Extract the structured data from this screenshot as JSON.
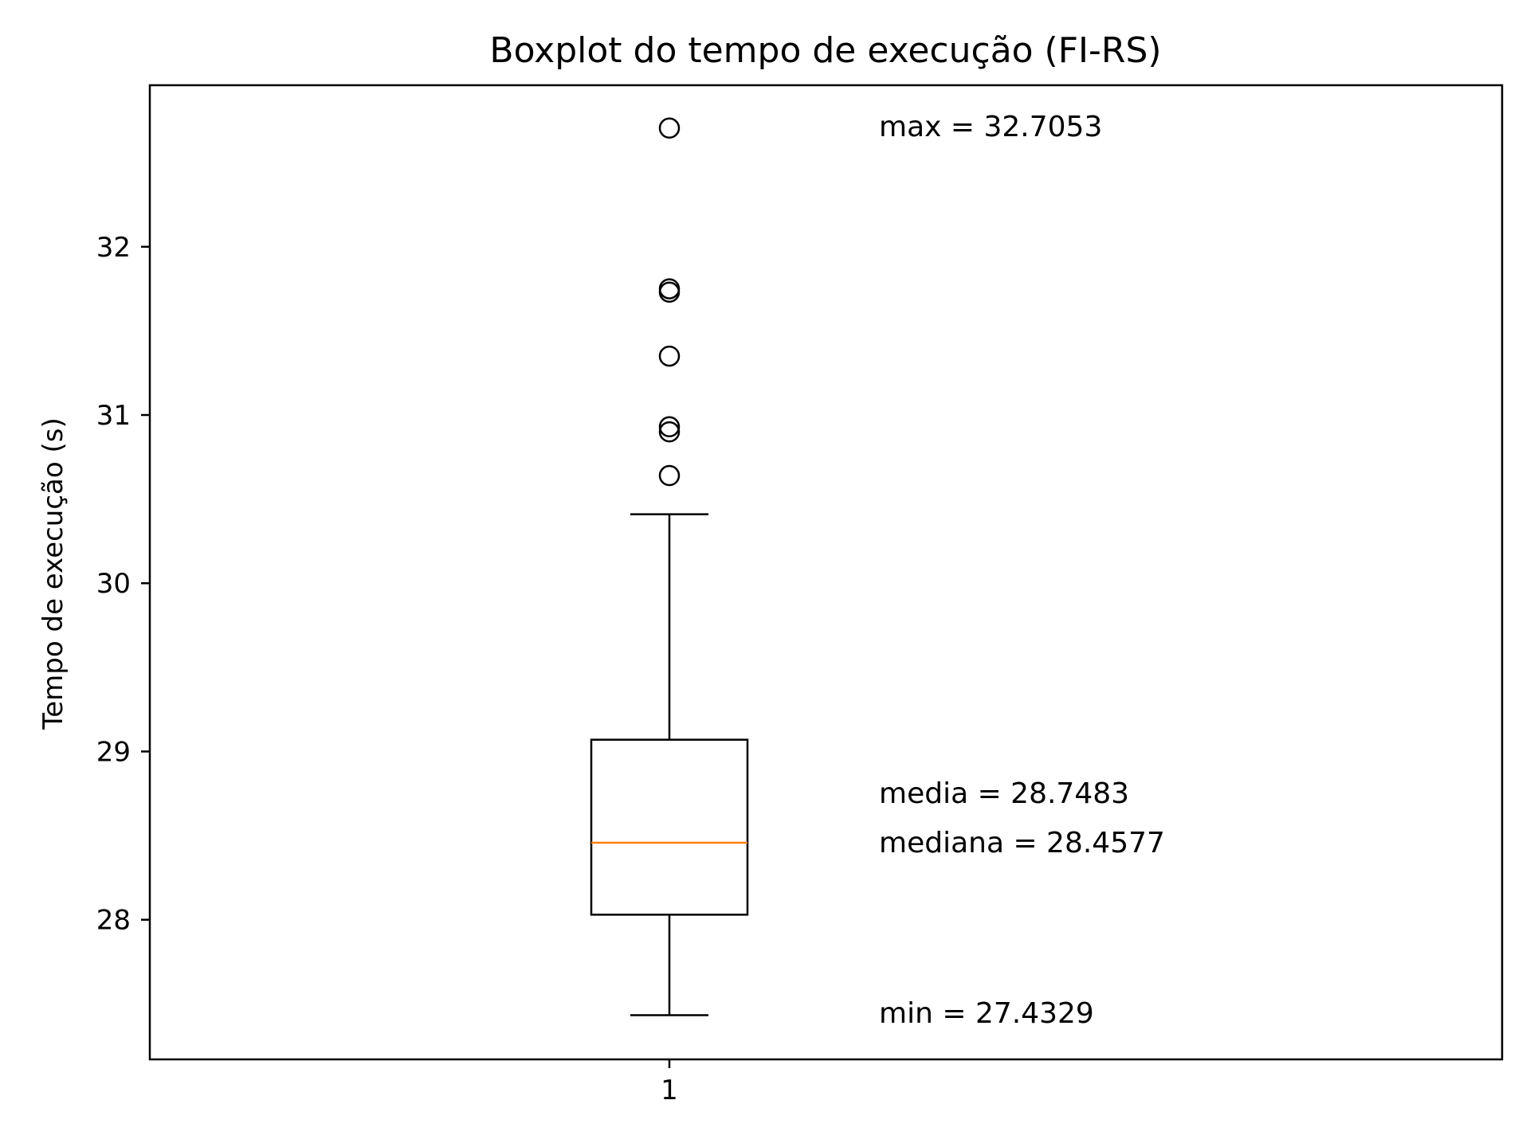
{
  "chart_data": {
    "type": "boxplot",
    "title": "Boxplot do tempo de execução (FI-RS)",
    "xlabel": "",
    "ylabel": "Tempo de execução (s)",
    "categories": [
      "1"
    ],
    "ylim": [
      27.17,
      32.96
    ],
    "yticks": [
      28,
      29,
      30,
      31,
      32
    ],
    "grid": false,
    "legend": "none",
    "box": {
      "whisker_low": 27.4329,
      "q1": 28.03,
      "median": 28.4577,
      "q3": 29.07,
      "whisker_high": 30.41
    },
    "outliers": [
      30.64,
      30.9,
      30.93,
      31.35,
      31.73,
      31.75,
      32.7053
    ],
    "annotations": {
      "max": "max = 32.7053",
      "media": "media = 28.7483",
      "mediana": "mediana = 28.4577",
      "min": "min = 27.4329"
    },
    "colors": {
      "box": "#000000",
      "median": "#ff7f0e",
      "outlier": "#000000"
    }
  }
}
